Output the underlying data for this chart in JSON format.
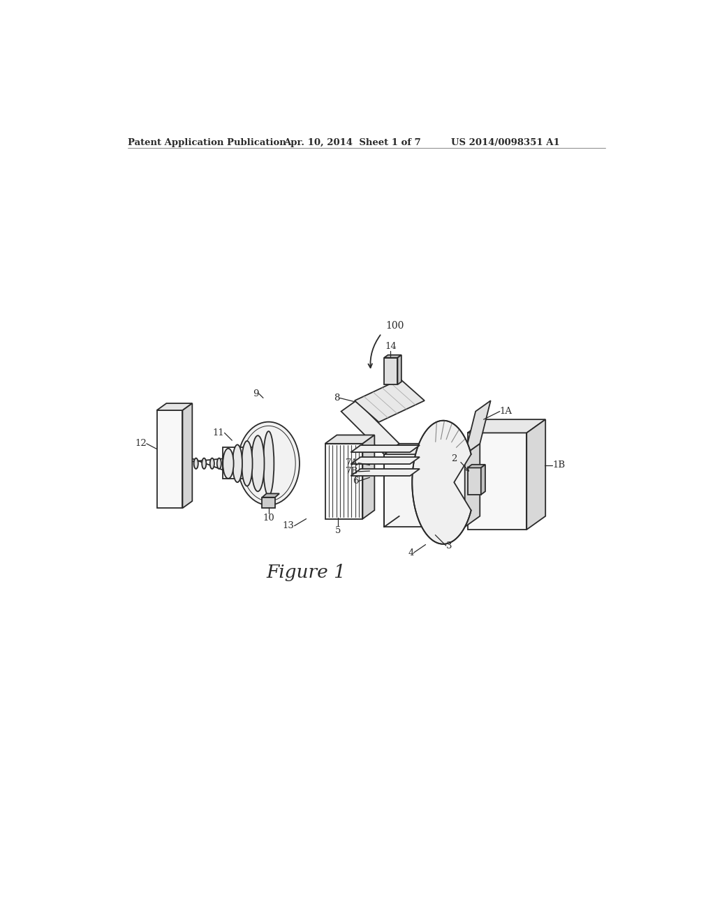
{
  "bg_color": "#ffffff",
  "line_color": "#2a2a2a",
  "header_left": "Patent Application Publication",
  "header_center": "Apr. 10, 2014  Sheet 1 of 7",
  "header_right": "US 2014/0098351 A1",
  "figure_caption": "Figure 1",
  "label_100": "100",
  "label_1A": "1A",
  "label_1B": "1B",
  "label_2": "2",
  "label_3": "3",
  "label_4": "4",
  "label_5": "5",
  "label_6": "6",
  "label_7A": "7A",
  "label_7B": "7B",
  "label_8": "8",
  "label_9": "9",
  "label_10": "10",
  "label_11": "11",
  "label_12": "12",
  "label_13": "13",
  "label_14": "14"
}
